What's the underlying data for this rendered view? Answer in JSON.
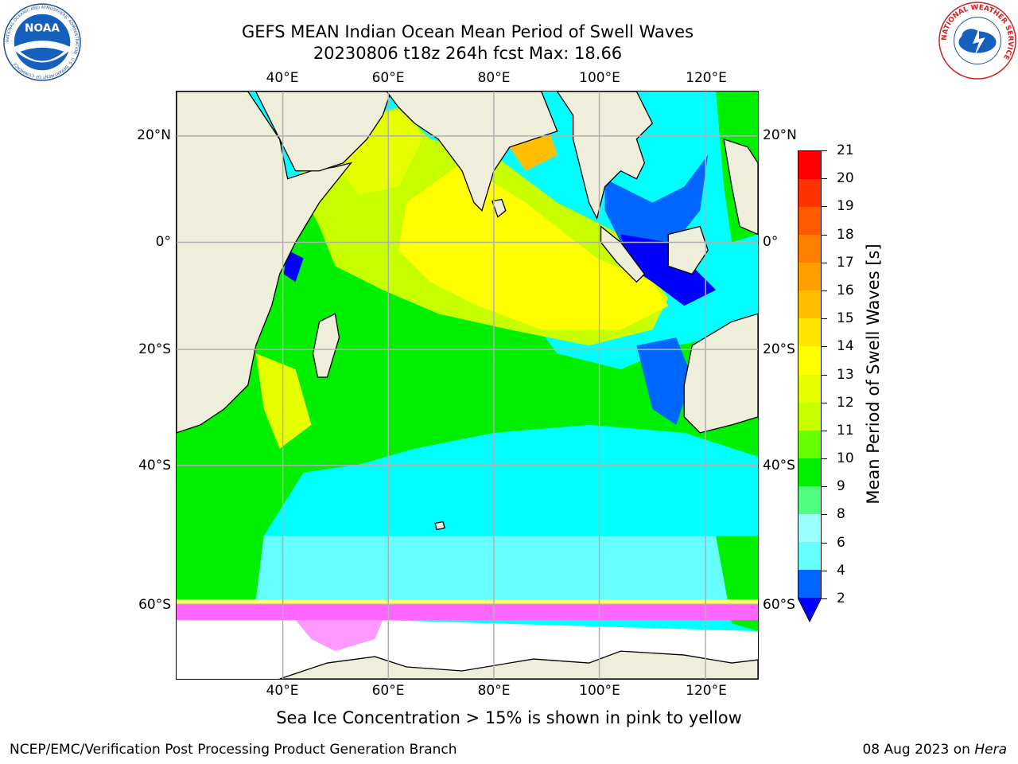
{
  "header": {
    "title_line1": "GEFS MEAN Indian Ocean Mean Period of Swell Waves",
    "title_line2": "20230806 t18z 264h fcst   Max: 18.66"
  },
  "map": {
    "lon_labels": [
      "40°E",
      "60°E",
      "80°E",
      "100°E",
      "120°E"
    ],
    "lat_labels": [
      "20°N",
      "0°",
      "20°S",
      "40°S",
      "60°S"
    ],
    "land_color": "#efeedb",
    "grid_color": "#b0b0b0"
  },
  "colorbar": {
    "label": "Mean Period of Swell Waves [s]",
    "ticks": [
      "21",
      "20",
      "19",
      "18",
      "17",
      "16",
      "15",
      "14",
      "13",
      "12",
      "11",
      "10",
      "9",
      "8",
      "6",
      "4",
      "2"
    ],
    "colors": [
      "#ff0000",
      "#ff3300",
      "#ff5a00",
      "#ff7f00",
      "#ff9f00",
      "#ffbf00",
      "#ffe600",
      "#ffff00",
      "#e6ff00",
      "#c8ff00",
      "#64ff00",
      "#00f000",
      "#50ff80",
      "#99ffff",
      "#66ffff",
      "#00ffff",
      "#0066ff"
    ],
    "extend_color": "#0000ff"
  },
  "footer": {
    "note": "Sea Ice Concentration > 15% is shown in pink to yellow",
    "left": "NCEP/EMC/Verification Post Processing Product Generation Branch",
    "right_date": "08 Aug 2023 on ",
    "right_host": "Hera"
  },
  "logos": {
    "noaa_text": "NOAA",
    "noaa_ring": "NATIONAL OCEANIC AND ATMOSPHERIC ADMINISTRATION · U.S. DEPARTMENT OF COMMERCE",
    "nws_ring": "NATIONAL WEATHER SERVICE"
  }
}
